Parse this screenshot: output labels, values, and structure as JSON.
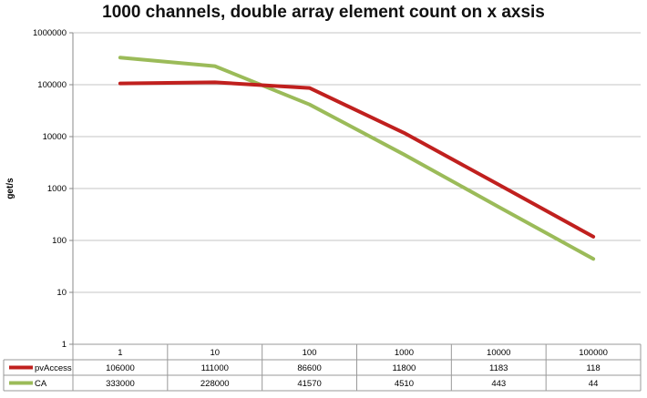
{
  "chart_data": {
    "type": "line",
    "title": "1000 channels, double array element count on x axsis",
    "xlabel": "",
    "ylabel": "get/s",
    "y_scale": "log",
    "ylim": [
      1,
      1000000
    ],
    "y_ticks": [
      "1",
      "10",
      "100",
      "1000",
      "10000",
      "100000",
      "1000000"
    ],
    "categories": [
      "1",
      "10",
      "100",
      "1000",
      "10000",
      "100000"
    ],
    "grid": "horizontal",
    "legend": "data-table-left",
    "series": [
      {
        "name": "pvAccess",
        "color": "#c0201e",
        "values": [
          106000,
          111000,
          86600,
          11800,
          1183,
          118
        ],
        "labels": [
          "106000",
          "111000",
          "86600",
          "11800",
          "1183",
          "118"
        ]
      },
      {
        "name": "CA",
        "color": "#9bbb59",
        "values": [
          333000,
          228000,
          41570,
          4510,
          443,
          44
        ],
        "labels": [
          "333000",
          "228000",
          "41570",
          "4510",
          "443",
          "44"
        ]
      }
    ]
  }
}
